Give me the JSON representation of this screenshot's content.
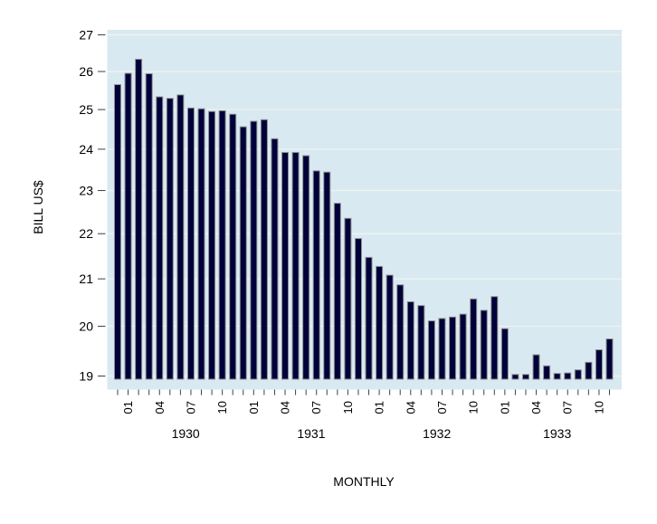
{
  "colors": {
    "page_bg": "#ffffff",
    "plot_bg": "#d9e9f1",
    "gridline": "#eef4f1",
    "bar_fill": "#00003a",
    "bar_stroke": "#8f8f8f",
    "tick": "#404040",
    "text": "#000000"
  },
  "chart_data": {
    "type": "bar",
    "title": "",
    "ylabel": "BILL US$",
    "xlabel": "MONTHLY",
    "y_scale": "log",
    "ylim": [
      18.93,
      27.2
    ],
    "y_ticks": [
      27,
      26,
      25,
      24,
      23,
      22,
      21,
      20,
      19
    ],
    "grid": "on",
    "legend": "none",
    "x_label_months": [
      "01",
      "04",
      "07",
      "10"
    ],
    "year_labels": [
      "1930",
      "1931",
      "1932",
      "1933"
    ],
    "categories": [
      "1929-12",
      "1930-01",
      "1930-02",
      "1930-03",
      "1930-04",
      "1930-05",
      "1930-06",
      "1930-07",
      "1930-08",
      "1930-09",
      "1930-10",
      "1930-11",
      "1930-12",
      "1931-01",
      "1931-02",
      "1931-03",
      "1931-04",
      "1931-05",
      "1931-06",
      "1931-07",
      "1931-08",
      "1931-09",
      "1931-10",
      "1931-11",
      "1931-12",
      "1932-01",
      "1932-02",
      "1932-03",
      "1932-04",
      "1932-05",
      "1932-06",
      "1932-07",
      "1932-08",
      "1932-09",
      "1932-10",
      "1932-11",
      "1932-12",
      "1933-01",
      "1933-02",
      "1933-03",
      "1933-04",
      "1933-05",
      "1933-06",
      "1933-07",
      "1933-08",
      "1933-09",
      "1933-10",
      "1933-11"
    ],
    "values": [
      25.65,
      25.95,
      26.33,
      25.94,
      25.33,
      25.29,
      25.38,
      25.04,
      25.02,
      24.95,
      24.97,
      24.88,
      24.56,
      24.7,
      24.74,
      24.26,
      23.92,
      23.92,
      23.84,
      23.47,
      23.44,
      22.7,
      22.35,
      21.89,
      21.47,
      21.27,
      21.08,
      20.87,
      20.51,
      20.43,
      20.11,
      20.16,
      20.19,
      20.25,
      20.57,
      20.33,
      20.62,
      19.95,
      19.03,
      19.03,
      19.42,
      19.2,
      19.05,
      19.06,
      19.12,
      19.27,
      19.52,
      19.74
    ]
  }
}
